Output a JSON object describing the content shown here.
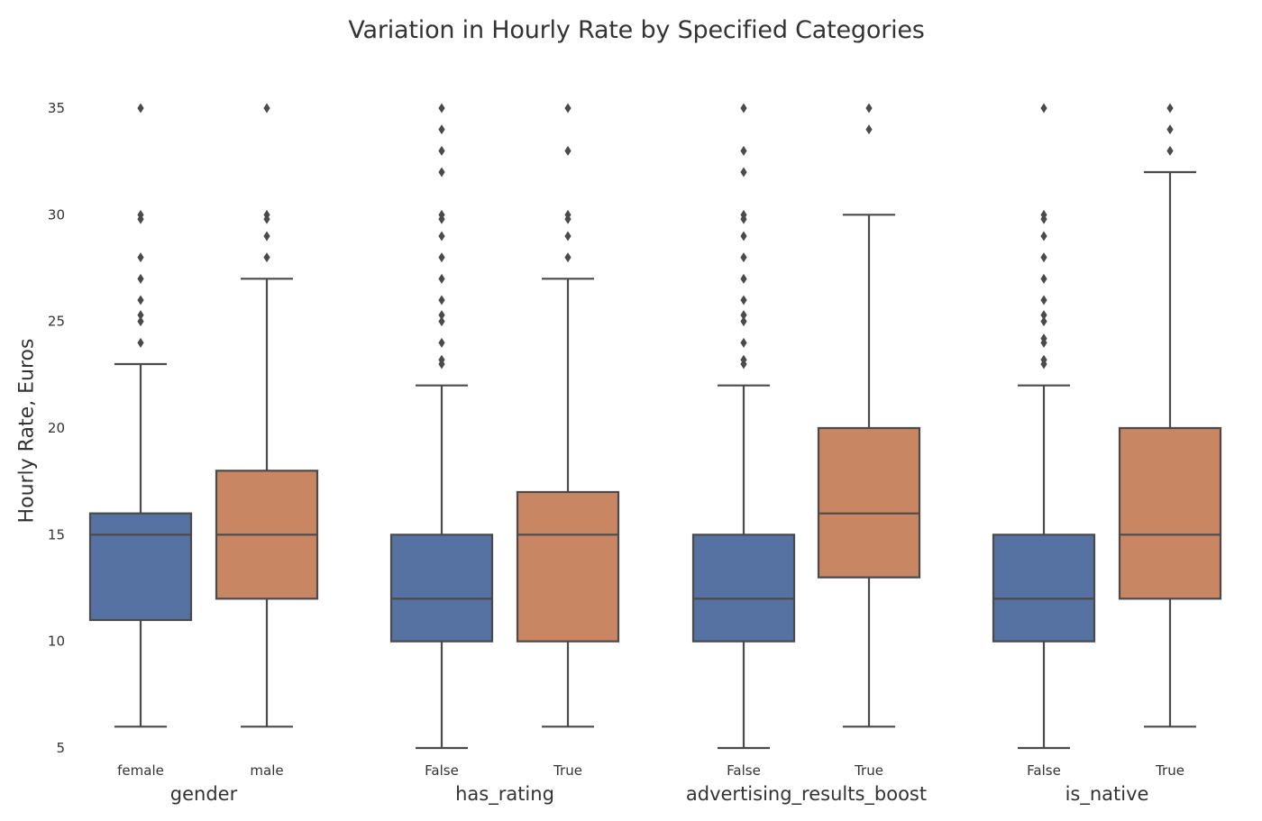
{
  "chart_data": {
    "type": "box",
    "title": "Variation in Hourly Rate by Specified Categories",
    "ylabel": "Hourly Rate, Euros",
    "ylim": [
      5,
      35
    ],
    "yticks": [
      5,
      10,
      15,
      20,
      25,
      30,
      35
    ],
    "grid": false,
    "colors": {
      "first": "#5572a3",
      "second": "#c98662",
      "line": "#4a4a4a"
    },
    "groups": [
      {
        "name": "gender",
        "categories": [
          {
            "label": "female",
            "whisker_low": 6,
            "q1": 11,
            "median": 15,
            "q3": 16,
            "whisker_high": 23,
            "outliers": [
              24,
              25,
              25.3,
              26,
              27,
              28,
              29.8,
              30,
              35
            ]
          },
          {
            "label": "male",
            "whisker_low": 6,
            "q1": 12,
            "median": 15,
            "q3": 18,
            "whisker_high": 27,
            "outliers": [
              28,
              29,
              29.8,
              30,
              35
            ]
          }
        ]
      },
      {
        "name": "has_rating",
        "categories": [
          {
            "label": "False",
            "whisker_low": 5,
            "q1": 10,
            "median": 12,
            "q3": 15,
            "whisker_high": 22,
            "outliers": [
              23,
              23.2,
              24,
              25,
              25.3,
              26,
              27,
              28,
              29,
              29.8,
              30,
              32,
              33,
              34,
              35
            ]
          },
          {
            "label": "True",
            "whisker_low": 6,
            "q1": 10,
            "median": 15,
            "q3": 17,
            "whisker_high": 27,
            "outliers": [
              28,
              29,
              29.8,
              30,
              33,
              35
            ]
          }
        ]
      },
      {
        "name": "advertising_results_boost",
        "categories": [
          {
            "label": "False",
            "whisker_low": 5,
            "q1": 10,
            "median": 12,
            "q3": 15,
            "whisker_high": 22,
            "outliers": [
              23,
              23.2,
              24,
              25,
              25.3,
              26,
              27,
              28,
              29,
              29.8,
              30,
              32,
              33,
              35
            ]
          },
          {
            "label": "True",
            "whisker_low": 6,
            "q1": 13,
            "median": 16,
            "q3": 20,
            "whisker_high": 30,
            "outliers": [
              34,
              35
            ]
          }
        ]
      },
      {
        "name": "is_native",
        "categories": [
          {
            "label": "False",
            "whisker_low": 5,
            "q1": 10,
            "median": 12,
            "q3": 15,
            "whisker_high": 22,
            "outliers": [
              23,
              23.2,
              24,
              24.2,
              25,
              25.3,
              26,
              27,
              28,
              29,
              29.8,
              30,
              35
            ]
          },
          {
            "label": "True",
            "whisker_low": 6,
            "q1": 12,
            "median": 15,
            "q3": 20,
            "whisker_high": 32,
            "outliers": [
              33,
              34,
              35
            ]
          }
        ]
      }
    ]
  }
}
